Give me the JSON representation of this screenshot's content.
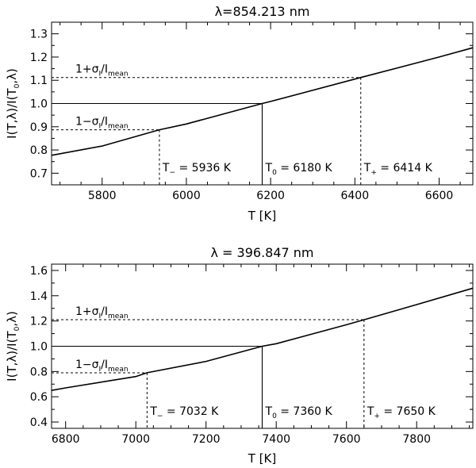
{
  "chart_data": [
    {
      "type": "line",
      "title": "λ=854.213 nm",
      "xlabel": "T [K]",
      "ylabel": "I(T,λ)/I(T0,λ)",
      "xlim": [
        5680,
        6680
      ],
      "ylim": [
        0.65,
        1.35
      ],
      "xticks": [
        5800,
        6000,
        6200,
        6400,
        6600
      ],
      "yticks": [
        0.7,
        0.8,
        0.9,
        1.0,
        1.1,
        1.2,
        1.3
      ],
      "ytick_labels": [
        "0.7",
        "0.8",
        "0.9",
        "1.0",
        "1.1",
        "1.2",
        "1.3"
      ],
      "curve": {
        "x": [
          5680,
          5800,
          5936,
          6000,
          6180,
          6200,
          6414,
          6600,
          6680
        ],
        "y": [
          0.777,
          0.817,
          0.887,
          0.912,
          1.0,
          1.009,
          1.112,
          1.2,
          1.24
        ]
      },
      "T0": 6180,
      "Tminus": 5936,
      "Tplus": 6414,
      "level_upper": 1.112,
      "level_lower": 0.887,
      "level_one": 1.0,
      "label_upper": {
        "pre": "1+σ",
        "sub1": "I",
        "mid": "/I",
        "sub2": "mean"
      },
      "label_lower": {
        "pre": "1−σ",
        "sub1": "I",
        "mid": "/I",
        "sub2": "mean"
      },
      "ann_minus": {
        "pre": "T",
        "sub": "−",
        "post": " = 5936 K"
      },
      "ann_zero": {
        "pre": "T",
        "sub": "0",
        "post": " = 6180 K"
      },
      "ann_plus": {
        "pre": "T",
        "sub": "+",
        "post": " = 6414 K"
      }
    },
    {
      "type": "line",
      "title": "λ = 396.847 nm",
      "xlabel": "T [K]",
      "ylabel": "I(T,λ)/I(T0,λ)",
      "xlim": [
        6760,
        7960
      ],
      "ylim": [
        0.35,
        1.65
      ],
      "xticks": [
        6800,
        7000,
        7200,
        7400,
        7600,
        7800
      ],
      "yticks": [
        0.4,
        0.6,
        0.8,
        1.0,
        1.2,
        1.4,
        1.6
      ],
      "ytick_labels": [
        "0.4",
        "0.6",
        "0.8",
        "1.0",
        "1.2",
        "1.4",
        "1.6"
      ],
      "curve": {
        "x": [
          6760,
          6800,
          7000,
          7032,
          7200,
          7360,
          7400,
          7600,
          7650,
          7800,
          7960
        ],
        "y": [
          0.65,
          0.67,
          0.76,
          0.79,
          0.88,
          1.0,
          1.02,
          1.17,
          1.21,
          1.33,
          1.46
        ]
      },
      "T0": 7360,
      "Tminus": 7032,
      "Tplus": 7650,
      "level_upper": 1.21,
      "level_lower": 0.79,
      "level_one": 1.0,
      "label_upper": {
        "pre": "1+σ",
        "sub1": "I",
        "mid": "/I",
        "sub2": "mean"
      },
      "label_lower": {
        "pre": "1−σ",
        "sub1": "I",
        "mid": "/I",
        "sub2": "mean"
      },
      "ann_minus": {
        "pre": "T",
        "sub": "−",
        "post": " = 7032 K"
      },
      "ann_zero": {
        "pre": "T",
        "sub": "0",
        "post": " = 7360 K"
      },
      "ann_plus": {
        "pre": "T",
        "sub": "+",
        "post": " = 7650 K"
      }
    }
  ]
}
